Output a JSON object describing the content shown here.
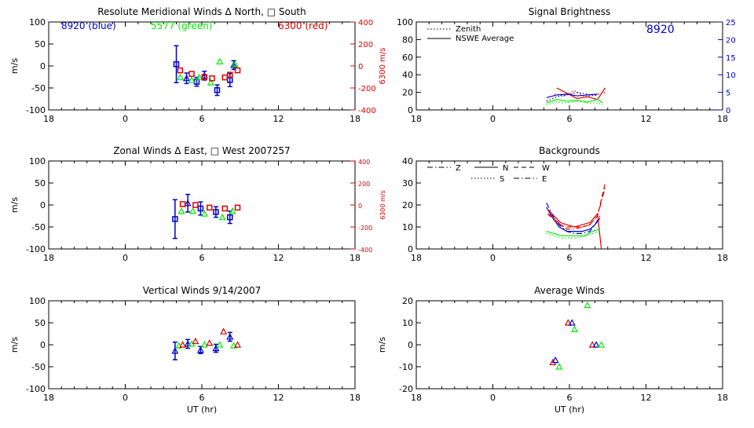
{
  "colors": {
    "blue": "#0000cc",
    "green": "#00ee00",
    "red": "#dd0000",
    "axis": "#000000",
    "right_axis_red": "#dd0000",
    "right_axis_blue": "#0000cc"
  },
  "chart_data": [
    {
      "id": "meridional",
      "type": "scatter",
      "title": "Resolute Meridional Winds Δ North, □ South",
      "ylabel": "m/s",
      "right_ylabel": "6300 m/s",
      "ylim": [
        -100,
        100
      ],
      "yticks": [
        "100",
        "50",
        "0",
        "-50",
        "-100"
      ],
      "right_ylim": [
        -400,
        400
      ],
      "right_yticks": [
        "400",
        "200",
        "0",
        "-200",
        "-400"
      ],
      "xticks": [
        "18",
        "0",
        "6",
        "12",
        "18"
      ],
      "xlim": [
        -6,
        18
      ],
      "labels": [
        {
          "text": "8920 (blue)",
          "color": "blue"
        },
        {
          "text": "5577 (green)",
          "color": "green"
        },
        {
          "text": "6300 (red)",
          "color": "red"
        }
      ],
      "series": [
        {
          "color": "blue",
          "points": [
            {
              "x": 4.0,
              "y": 4,
              "err": 42,
              "m": "sq"
            },
            {
              "x": 4.8,
              "y": -28,
              "err": 12,
              "m": "tri"
            },
            {
              "x": 5.6,
              "y": -36,
              "err": 10,
              "m": "sq"
            },
            {
              "x": 6.2,
              "y": -22,
              "err": 10,
              "m": "tri"
            },
            {
              "x": 7.2,
              "y": -55,
              "err": 12,
              "m": "sq"
            },
            {
              "x": 8.2,
              "y": -32,
              "err": 15,
              "m": "sq"
            },
            {
              "x": 8.5,
              "y": 2,
              "err": 10,
              "m": "tri"
            }
          ]
        },
        {
          "color": "green",
          "points": [
            {
              "x": 4.3,
              "y": -26,
              "m": "tri"
            },
            {
              "x": 5.2,
              "y": -32,
              "m": "tri"
            },
            {
              "x": 5.8,
              "y": -26,
              "m": "tri"
            },
            {
              "x": 6.7,
              "y": -38,
              "m": "tri"
            },
            {
              "x": 7.4,
              "y": 10,
              "m": "tri"
            },
            {
              "x": 8.6,
              "y": 4,
              "m": "tri"
            }
          ]
        },
        {
          "color": "red",
          "points": [
            {
              "x": 4.3,
              "y": -10,
              "m": "sq"
            },
            {
              "x": 5.2,
              "y": -18,
              "m": "sq"
            },
            {
              "x": 6.2,
              "y": -25,
              "m": "sq"
            },
            {
              "x": 6.8,
              "y": -28,
              "m": "sq"
            },
            {
              "x": 7.8,
              "y": -26,
              "m": "sq"
            },
            {
              "x": 8.2,
              "y": -20,
              "m": "sq"
            },
            {
              "x": 8.8,
              "y": -10,
              "m": "sq"
            }
          ]
        }
      ]
    },
    {
      "id": "zonal",
      "type": "scatter",
      "title": "Zonal Winds Δ East, □ West 2007257",
      "ylabel": "m/s",
      "right_ylabel": "6300 m/s",
      "ylim": [
        -100,
        100
      ],
      "yticks": [
        "100",
        "50",
        "0",
        "-50",
        "-100"
      ],
      "right_ylim": [
        -400,
        400
      ],
      "right_yticks": [
        "400",
        "200",
        "0",
        "-200",
        "-400"
      ],
      "xticks": [
        "18",
        "0",
        "6",
        "12",
        "18"
      ],
      "xlim": [
        -6,
        18
      ],
      "series": [
        {
          "color": "blue",
          "points": [
            {
              "x": 3.9,
              "y": -32,
              "err": 44,
              "m": "sq"
            },
            {
              "x": 4.9,
              "y": 4,
              "err": 20,
              "m": "tri"
            },
            {
              "x": 5.9,
              "y": -8,
              "err": 15,
              "m": "sq"
            },
            {
              "x": 7.1,
              "y": -16,
              "err": 12,
              "m": "sq"
            },
            {
              "x": 8.2,
              "y": -28,
              "err": 14,
              "m": "sq"
            }
          ]
        },
        {
          "color": "green",
          "points": [
            {
              "x": 4.4,
              "y": -14,
              "m": "tri"
            },
            {
              "x": 5.3,
              "y": -14,
              "m": "tri"
            },
            {
              "x": 6.2,
              "y": -20,
              "m": "tri"
            },
            {
              "x": 7.6,
              "y": -28,
              "m": "tri"
            },
            {
              "x": 8.4,
              "y": -14,
              "m": "tri"
            }
          ]
        },
        {
          "color": "red",
          "points": [
            {
              "x": 4.5,
              "y": 2,
              "m": "sq"
            },
            {
              "x": 5.5,
              "y": 0,
              "m": "sq"
            },
            {
              "x": 6.6,
              "y": -6,
              "m": "sq"
            },
            {
              "x": 7.8,
              "y": -8,
              "m": "sq"
            },
            {
              "x": 8.8,
              "y": -6,
              "m": "sq"
            }
          ]
        }
      ]
    },
    {
      "id": "vertical",
      "type": "scatter",
      "title": "Vertical Winds 9/14/2007",
      "ylabel": "m/s",
      "xlabel": "UT (hr)",
      "ylim": [
        -100,
        100
      ],
      "yticks": [
        "100",
        "50",
        "0",
        "-50",
        "-100"
      ],
      "xticks": [
        "18",
        "0",
        "6",
        "12",
        "18"
      ],
      "xlim": [
        -6,
        18
      ],
      "series": [
        {
          "color": "blue",
          "points": [
            {
              "x": 3.9,
              "y": -14,
              "err": 20,
              "m": "tri"
            },
            {
              "x": 4.9,
              "y": 2,
              "err": 10,
              "m": "tri"
            },
            {
              "x": 5.9,
              "y": -12,
              "err": 8,
              "m": "tri"
            },
            {
              "x": 7.1,
              "y": -8,
              "err": 9,
              "m": "tri"
            },
            {
              "x": 8.2,
              "y": 18,
              "err": 10,
              "m": "tri"
            }
          ]
        },
        {
          "color": "green",
          "points": [
            {
              "x": 4.2,
              "y": -2,
              "m": "tri"
            },
            {
              "x": 5.2,
              "y": 2,
              "m": "tri"
            },
            {
              "x": 6.2,
              "y": 0,
              "m": "tri"
            },
            {
              "x": 7.4,
              "y": 0,
              "m": "tri"
            },
            {
              "x": 8.5,
              "y": -2,
              "m": "tri"
            }
          ]
        },
        {
          "color": "red",
          "points": [
            {
              "x": 4.5,
              "y": 0,
              "m": "tri"
            },
            {
              "x": 5.5,
              "y": 8,
              "m": "tri"
            },
            {
              "x": 6.6,
              "y": 4,
              "m": "tri"
            },
            {
              "x": 7.7,
              "y": 30,
              "m": "tri"
            },
            {
              "x": 8.8,
              "y": 0,
              "m": "tri"
            }
          ]
        }
      ]
    },
    {
      "id": "brightness",
      "type": "line",
      "title": "Signal Brightness",
      "ylim": [
        0,
        100
      ],
      "yticks": [
        "100",
        "80",
        "60",
        "40",
        "20",
        "0"
      ],
      "right_ylim": [
        0,
        25
      ],
      "right_yticks": [
        "25",
        "20",
        "15",
        "10",
        "5",
        "0"
      ],
      "xticks": [
        "18",
        "0",
        "6",
        "12",
        "18"
      ],
      "xlim": [
        -6,
        18
      ],
      "station": "8920",
      "legend": [
        "Zenith",
        "NSWE Average"
      ],
      "series": [
        {
          "color": "red",
          "style": "solid",
          "x": [
            5.0,
            5.8,
            6.6,
            7.4,
            8.2,
            8.8
          ],
          "y": [
            25,
            19,
            13,
            15,
            12,
            25
          ]
        },
        {
          "color": "red",
          "style": "dotted",
          "x": [
            4.8,
            5.6,
            6.4,
            7.2,
            8.0,
            8.8
          ],
          "y": [
            18,
            16,
            22,
            15,
            17,
            20
          ]
        },
        {
          "color": "blue",
          "style": "solid",
          "x": [
            4.2,
            5.0,
            5.8,
            6.6,
            7.4,
            8.2
          ],
          "y": [
            14,
            17,
            18,
            16,
            17,
            18
          ]
        },
        {
          "color": "blue",
          "style": "dotted",
          "x": [
            4.2,
            5.0,
            5.8,
            6.6,
            7.4,
            8.2
          ],
          "y": [
            10,
            15,
            17,
            20,
            18,
            16
          ]
        },
        {
          "color": "green",
          "style": "solid",
          "x": [
            4.2,
            5.0,
            5.8,
            6.6,
            7.4,
            8.2,
            8.6
          ],
          "y": [
            8,
            12,
            10,
            11,
            9,
            12,
            8
          ]
        },
        {
          "color": "green",
          "style": "dotted",
          "x": [
            4.2,
            5.0,
            5.8,
            6.6,
            7.4,
            8.2,
            8.6
          ],
          "y": [
            6,
            9,
            8,
            10,
            8,
            8,
            6
          ]
        }
      ]
    },
    {
      "id": "backgrounds",
      "type": "line",
      "title": "Backgrounds",
      "ylim": [
        0,
        40
      ],
      "yticks": [
        "40",
        "30",
        "20",
        "10",
        "0"
      ],
      "xticks": [
        "18",
        "0",
        "6",
        "12",
        "18"
      ],
      "xlim": [
        -6,
        18
      ],
      "legend": [
        "Z",
        "N",
        "W",
        "S",
        "E"
      ],
      "series": [
        {
          "color": "blue",
          "style": "dashdot",
          "x": [
            4.2,
            4.7,
            5.2,
            5.8,
            6.4,
            7.0,
            7.6,
            8.0,
            8.4
          ],
          "y": [
            21,
            15,
            11,
            8,
            7,
            7,
            8,
            11,
            15
          ]
        },
        {
          "color": "blue",
          "style": "solid",
          "x": [
            4.2,
            4.7,
            5.2,
            5.8,
            6.4,
            7.0,
            7.6,
            8.0,
            8.4
          ],
          "y": [
            19,
            14,
            10,
            8,
            8,
            8,
            9,
            11,
            14
          ]
        },
        {
          "color": "red",
          "style": "solid",
          "x": [
            4.3,
            4.8,
            5.3,
            5.8,
            6.4,
            7.0,
            7.6,
            8.2,
            8.5
          ],
          "y": [
            18,
            15,
            12,
            11,
            10,
            11,
            12,
            16,
            0
          ]
        },
        {
          "color": "red",
          "style": "dashed",
          "x": [
            4.3,
            4.8,
            5.3,
            5.8,
            6.4,
            7.0,
            7.6,
            8.2,
            8.8
          ],
          "y": [
            16,
            13,
            11,
            10,
            10,
            10,
            11,
            15,
            30
          ]
        },
        {
          "color": "red",
          "style": "dashdot",
          "x": [
            4.3,
            4.8,
            5.3,
            5.8,
            6.4,
            7.0,
            7.6,
            8.2,
            8.8
          ],
          "y": [
            16,
            14,
            11,
            9,
            9,
            10,
            11,
            15,
            28
          ]
        },
        {
          "color": "green",
          "style": "solid",
          "x": [
            4.2,
            4.8,
            5.4,
            6.0,
            6.6,
            7.2,
            7.8,
            8.4
          ],
          "y": [
            8,
            7,
            6,
            6,
            6,
            6,
            8,
            9
          ]
        },
        {
          "color": "green",
          "style": "dotted",
          "x": [
            4.2,
            4.8,
            5.4,
            6.0,
            6.6,
            7.2,
            7.8,
            8.4
          ],
          "y": [
            7,
            6,
            5,
            5,
            5,
            6,
            7,
            8
          ]
        }
      ]
    },
    {
      "id": "average",
      "type": "scatter",
      "title": "Average Winds",
      "xlabel": "UT (hr)",
      "ylabel": "m/s",
      "ylim": [
        -20,
        20
      ],
      "yticks": [
        "20",
        "10",
        "0",
        "-10",
        "-20"
      ],
      "xticks": [
        "18",
        "0",
        "6",
        "12",
        "18"
      ],
      "xlim": [
        -6,
        18
      ],
      "series": [
        {
          "color": "red",
          "points": [
            {
              "x": 4.7,
              "y": -8,
              "m": "tri"
            },
            {
              "x": 5.9,
              "y": 10,
              "m": "tri"
            },
            {
              "x": 7.8,
              "y": 0,
              "m": "tri"
            }
          ]
        },
        {
          "color": "blue",
          "points": [
            {
              "x": 4.9,
              "y": -7,
              "m": "tri"
            },
            {
              "x": 6.2,
              "y": 10,
              "m": "tri"
            },
            {
              "x": 8.1,
              "y": 0,
              "m": "tri"
            }
          ]
        },
        {
          "color": "green",
          "points": [
            {
              "x": 5.2,
              "y": -10,
              "m": "tri"
            },
            {
              "x": 6.4,
              "y": 7,
              "m": "tri"
            },
            {
              "x": 7.4,
              "y": 18,
              "m": "tri"
            },
            {
              "x": 8.5,
              "y": 0,
              "m": "tri"
            }
          ]
        }
      ]
    }
  ]
}
